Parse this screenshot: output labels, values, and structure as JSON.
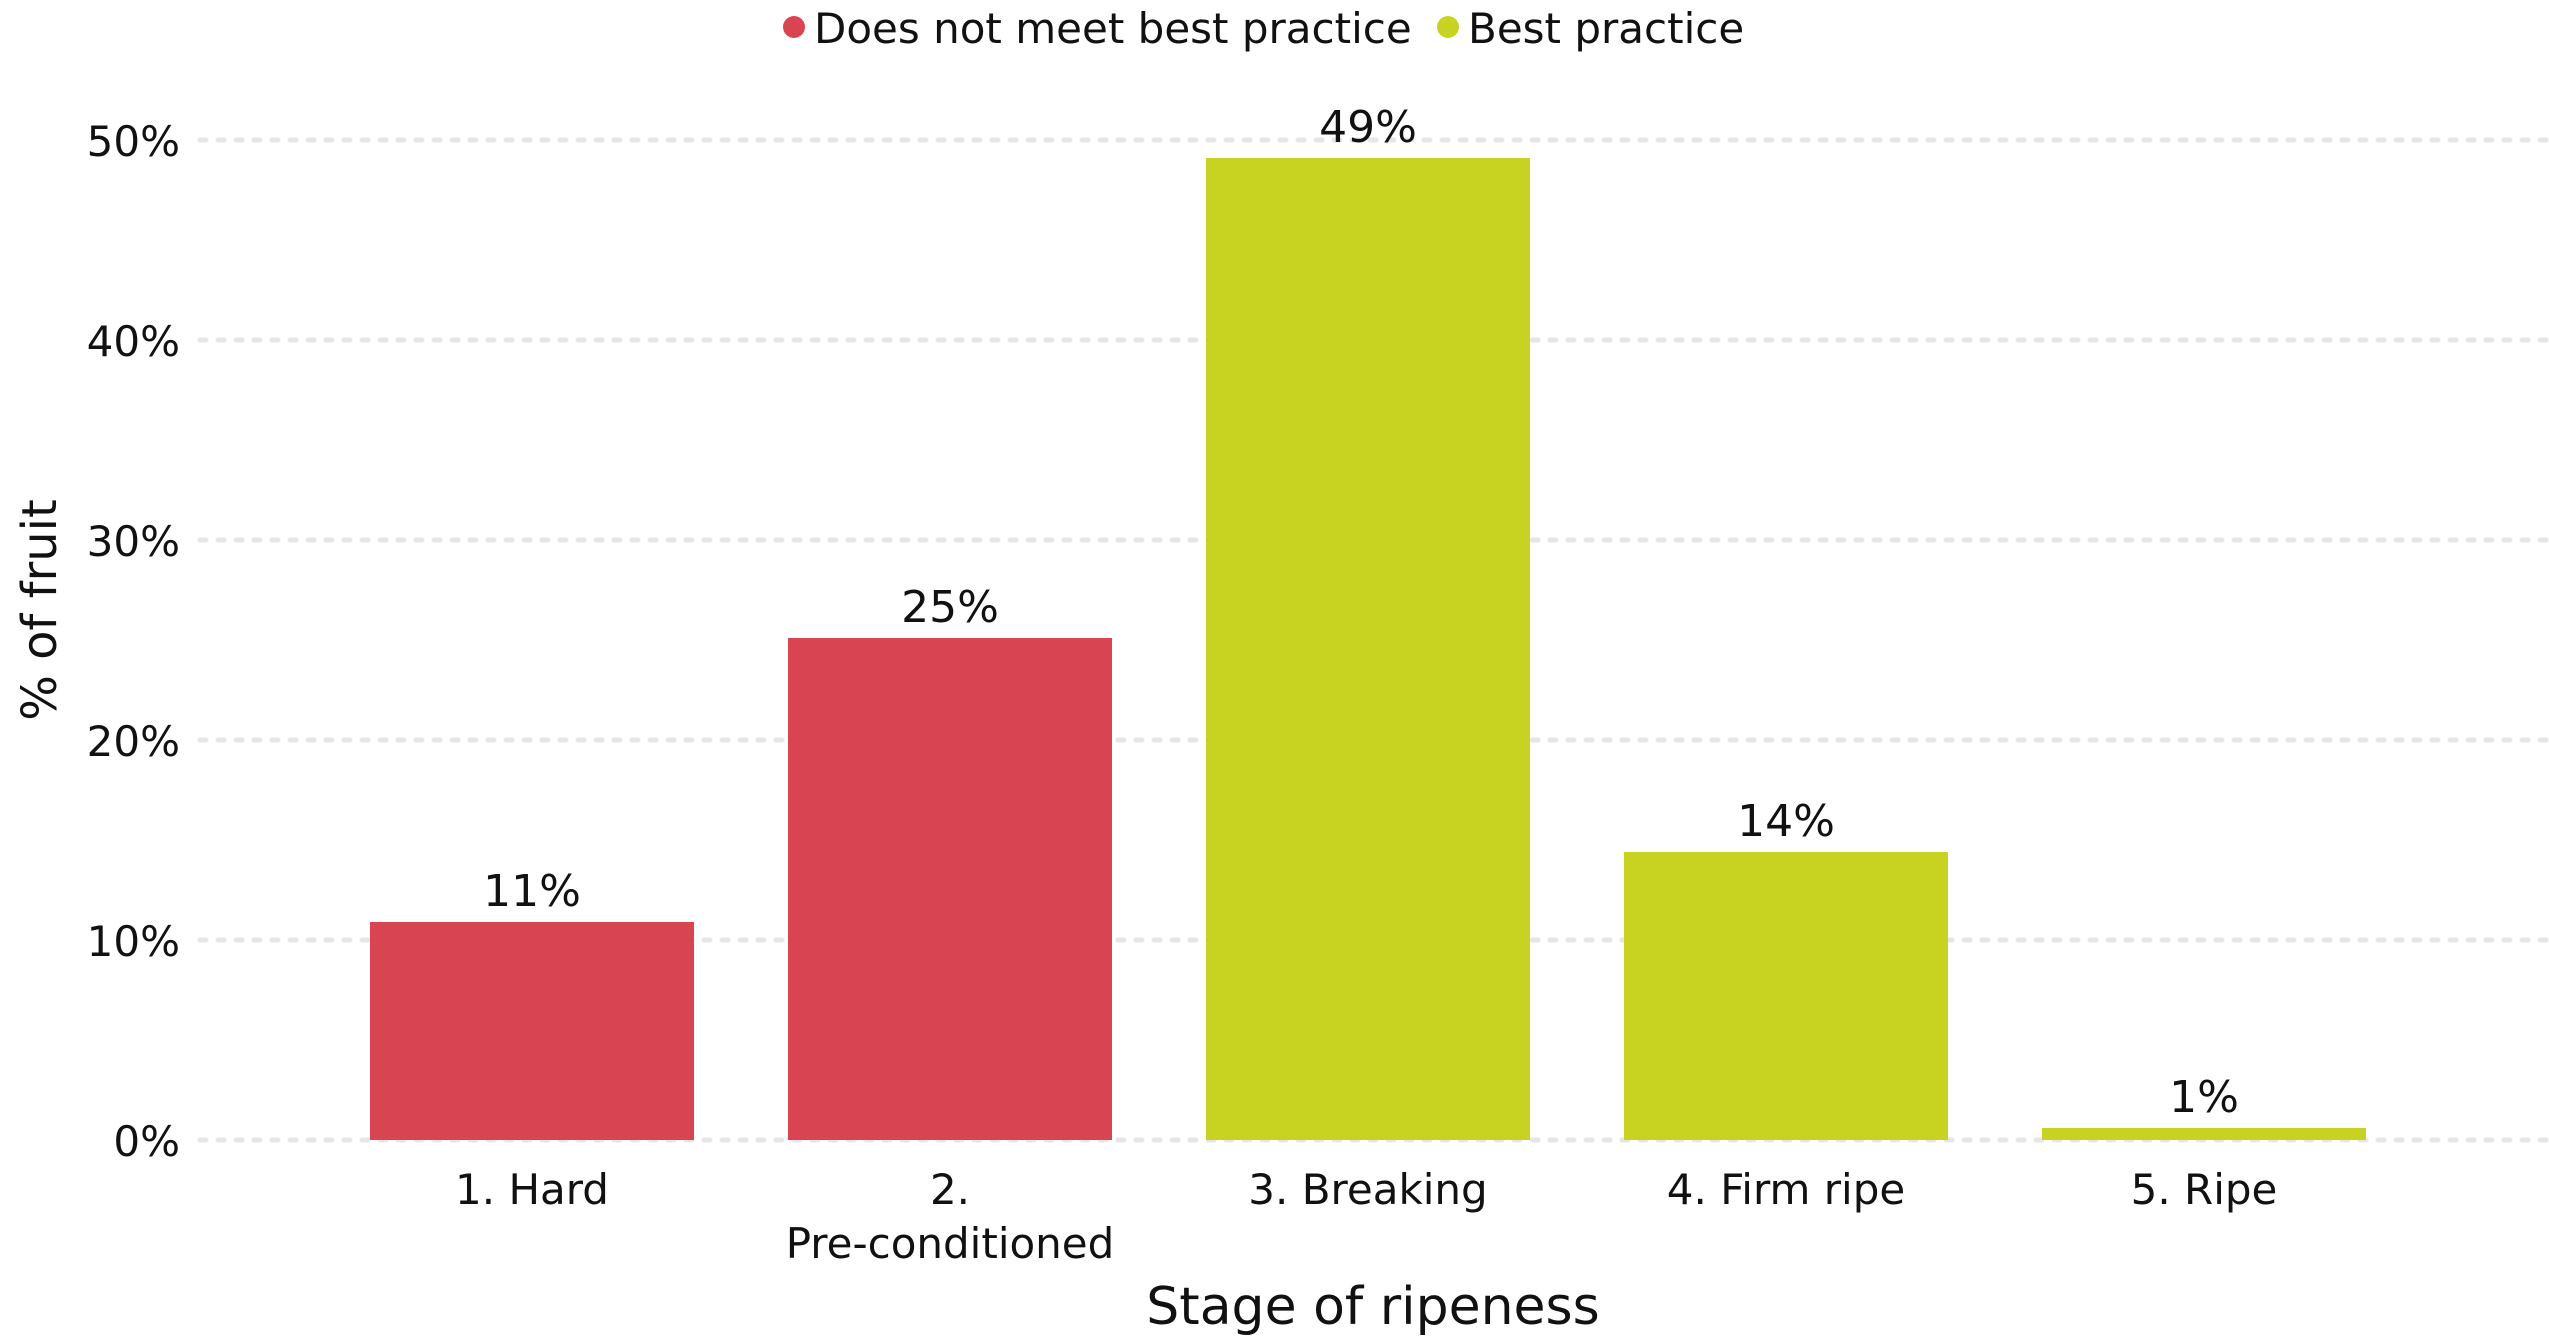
{
  "chart_data": {
    "type": "bar",
    "title": "",
    "xlabel": "Stage of ripeness",
    "ylabel": "% of fruit",
    "ylim": [
      0,
      50
    ],
    "yticks": [
      {
        "value": 0,
        "label": "0%"
      },
      {
        "value": 10,
        "label": "10%"
      },
      {
        "value": 20,
        "label": "20%"
      },
      {
        "value": 30,
        "label": "30%"
      },
      {
        "value": 40,
        "label": "40%"
      },
      {
        "value": 50,
        "label": "50%"
      }
    ],
    "grid": true,
    "legend_position": "top-center",
    "legend": [
      {
        "key": "not_best",
        "label": "Does not meet best practice",
        "color": "#d94452"
      },
      {
        "key": "best",
        "label": "Best practice",
        "color": "#c8d321"
      }
    ],
    "categories": [
      {
        "label_lines": [
          "1. Hard"
        ],
        "value": 10.9,
        "value_label": "11%",
        "group": "not_best"
      },
      {
        "label_lines": [
          "2.",
          "Pre-conditioned"
        ],
        "value": 25.1,
        "value_label": "25%",
        "group": "not_best"
      },
      {
        "label_lines": [
          "3. Breaking"
        ],
        "value": 49.1,
        "value_label": "49%",
        "group": "best"
      },
      {
        "label_lines": [
          "4. Firm ripe"
        ],
        "value": 14.4,
        "value_label": "14%",
        "group": "best"
      },
      {
        "label_lines": [
          "5. Ripe"
        ],
        "value": 0.6,
        "value_label": "1%",
        "group": "best"
      }
    ]
  }
}
